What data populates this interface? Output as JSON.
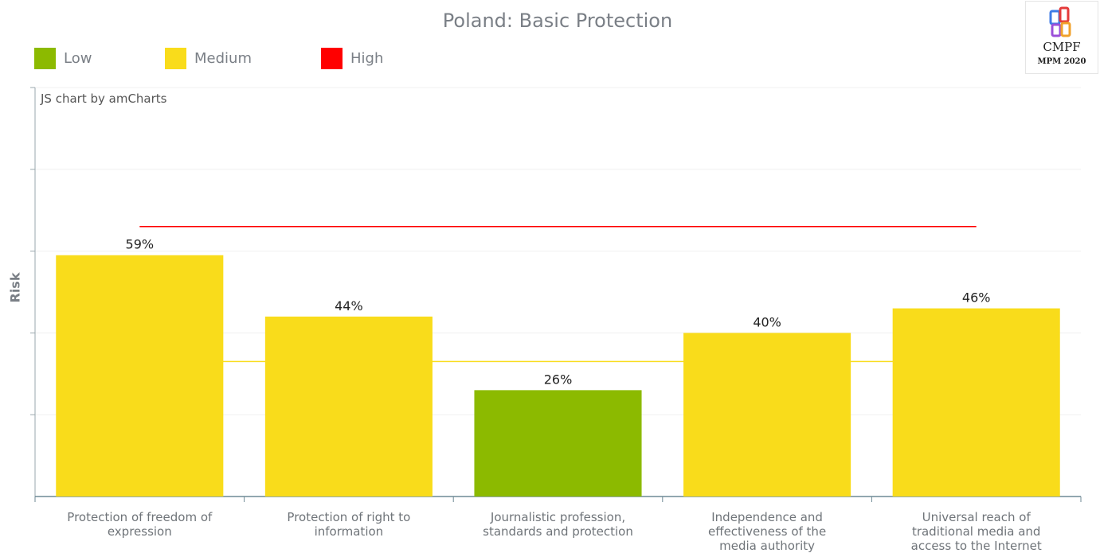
{
  "title": "Poland: Basic Protection",
  "credit": "JS chart by amCharts",
  "logo": {
    "brand": "CMPF",
    "edition": "MPM 2020"
  },
  "legend": [
    {
      "label": "Low",
      "color": "#8cba00"
    },
    {
      "label": "Medium",
      "color": "#f9dc1b"
    },
    {
      "label": "High",
      "color": "#ff0000"
    }
  ],
  "chart_data": {
    "type": "bar",
    "title": "Poland: Basic Protection",
    "xlabel": "",
    "ylabel": "Risk",
    "categories": [
      "Protection of freedom of expression",
      "Protection of right to information",
      "Journalistic profession, standards and protection",
      "Independence and effectiveness of the media authority",
      "Universal reach of traditional media and access to the Internet"
    ],
    "values": [
      59,
      44,
      26,
      40,
      46
    ],
    "data_labels": [
      "59%",
      "44%",
      "26%",
      "40%",
      "46%"
    ],
    "bar_colors": [
      "#f9dc1b",
      "#f9dc1b",
      "#8cba00",
      "#f9dc1b",
      "#f9dc1b"
    ],
    "ylim": [
      0,
      100
    ],
    "grid": true,
    "legend_position": "top-left",
    "reference_lines": [
      {
        "value": 33,
        "color": "#f9dc1b"
      },
      {
        "value": 66,
        "color": "#ff0000"
      }
    ]
  }
}
